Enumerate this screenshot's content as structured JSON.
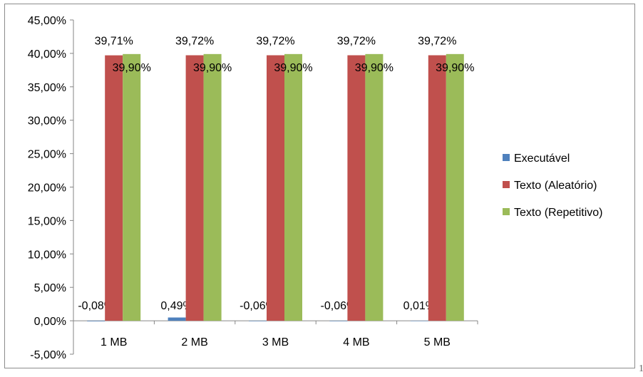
{
  "chart_data": {
    "type": "bar",
    "title": "",
    "xlabel": "",
    "ylabel": "",
    "categories": [
      "1 MB",
      "2 MB",
      "3 MB",
      "4 MB",
      "5 MB"
    ],
    "ylim": [
      -5,
      45
    ],
    "ytick_step": 5,
    "grid": false,
    "legend_position": "right",
    "series": [
      {
        "name": "Executável",
        "color": "#4F81BD",
        "values": [
          -0.08,
          0.49,
          -0.06,
          -0.06,
          0.01
        ],
        "labels": [
          "-0,08%",
          "0,49%",
          "-0,06%",
          "-0,06%",
          "0,01%"
        ]
      },
      {
        "name": "Texto (Aleatório)",
        "color": "#C0504D",
        "values": [
          39.71,
          39.72,
          39.72,
          39.72,
          39.72
        ],
        "labels": [
          "39,71%",
          "39,72%",
          "39,72%",
          "39,72%",
          "39,72%"
        ]
      },
      {
        "name": "Texto (Repetitivo)",
        "color": "#9BBB59",
        "values": [
          39.9,
          39.9,
          39.9,
          39.9,
          39.9
        ],
        "labels": [
          "39,90%",
          "39,90%",
          "39,90%",
          "39,90%",
          "39,90%"
        ]
      }
    ],
    "ytick_labels": [
      "-5,00%",
      "0,00%",
      "5,00%",
      "10,00%",
      "15,00%",
      "20,00%",
      "25,00%",
      "30,00%",
      "35,00%",
      "40,00%",
      "45,00%"
    ]
  },
  "page_glyph": "1"
}
